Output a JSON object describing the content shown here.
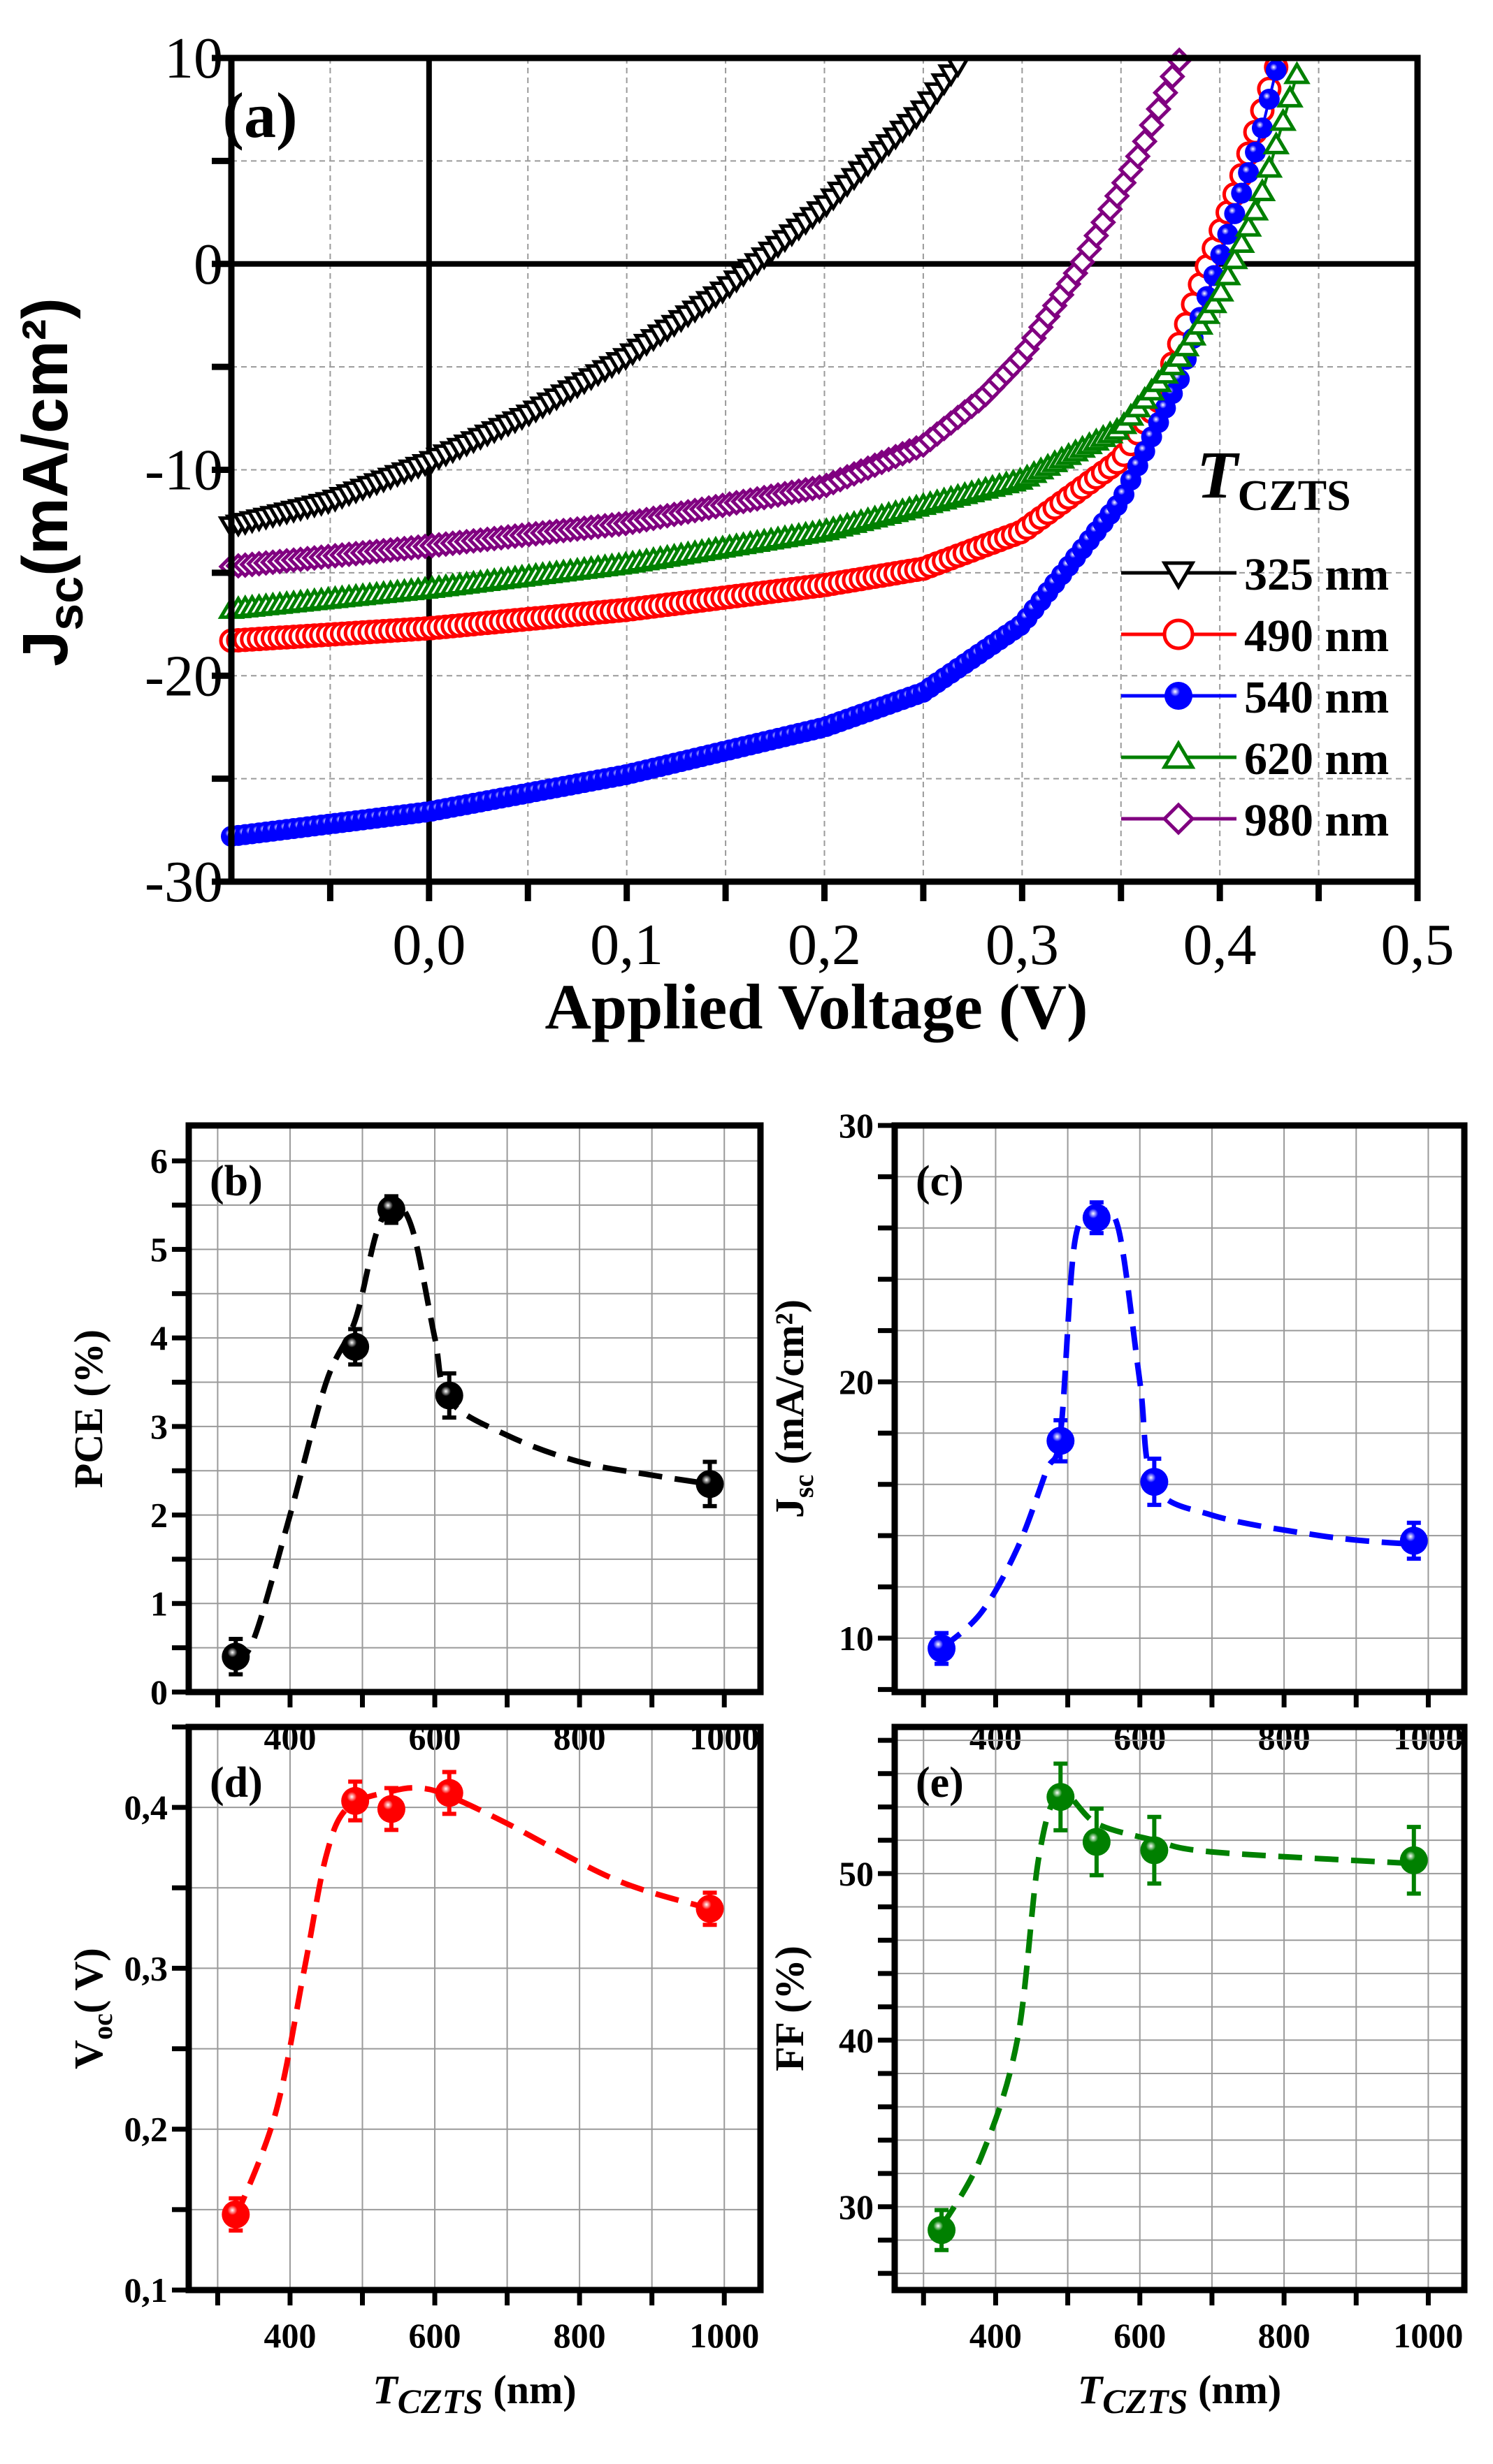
{
  "chart_data": [
    {
      "id": "a",
      "type": "line",
      "panel_label": "(a)",
      "xlabel": "Applied Voltage (V)",
      "ylabel": {
        "main": "J",
        "sub": "sc",
        "rest": "(mA/cm²)"
      },
      "xlim": [
        -0.1,
        0.5
      ],
      "ylim": [
        -30,
        10
      ],
      "xticks": [
        "0,0",
        "0,1",
        "0,2",
        "0,3",
        "0,4",
        "0,5"
      ],
      "xtick_values": [
        0,
        0.1,
        0.2,
        0.3,
        0.4,
        0.5
      ],
      "yticks": [
        "10",
        "0",
        "-10",
        "-20",
        "-30"
      ],
      "ytick_values": [
        10,
        0,
        -10,
        -20,
        -30
      ],
      "grid": true,
      "legend": {
        "title_main": "T",
        "title_sub": "CZTS",
        "placement": "right"
      },
      "series": [
        {
          "name": "325 nm",
          "color": "#000000",
          "marker": "triangle-down-open",
          "x": [
            -0.1,
            -0.05,
            0,
            0.05,
            0.1,
            0.15,
            0.2,
            0.25,
            0.27
          ],
          "y": [
            -12.7,
            -11.5,
            -9.6,
            -7.3,
            -4.5,
            -1.2,
            2.8,
            7.5,
            10
          ]
        },
        {
          "name": "490 nm",
          "color": "#ff0000",
          "marker": "circle-open",
          "x": [
            -0.1,
            0,
            0.1,
            0.2,
            0.25,
            0.3,
            0.35,
            0.37,
            0.39,
            0.41,
            0.43
          ],
          "y": [
            -18.3,
            -17.7,
            -16.8,
            -15.6,
            -14.8,
            -13,
            -9.5,
            -6.5,
            -1,
            4,
            10
          ]
        },
        {
          "name": "540 nm",
          "color": "#0000ff",
          "marker": "sphere",
          "x": [
            -0.1,
            0,
            0.1,
            0.2,
            0.25,
            0.3,
            0.35,
            0.38,
            0.4,
            0.42,
            0.43
          ],
          "y": [
            -27.8,
            -26.6,
            -24.8,
            -22.5,
            -20.8,
            -17.5,
            -11.5,
            -5.5,
            0.3,
            6,
            10
          ]
        },
        {
          "name": "620 nm",
          "color": "#008000",
          "marker": "triangle-up-open",
          "x": [
            -0.1,
            0,
            0.1,
            0.2,
            0.3,
            0.35,
            0.38,
            0.4,
            0.42,
            0.44
          ],
          "y": [
            -16.8,
            -15.8,
            -14.6,
            -13,
            -10.5,
            -8,
            -4.5,
            -1.5,
            3,
            9.5
          ]
        },
        {
          "name": "980 nm",
          "color": "#800080",
          "marker": "diamond-open",
          "x": [
            -0.1,
            0,
            0.1,
            0.2,
            0.25,
            0.28,
            0.3,
            0.33,
            0.36,
            0.38
          ],
          "y": [
            -14.7,
            -13.7,
            -12.6,
            -10.8,
            -8.8,
            -6.5,
            -4.5,
            0,
            5.5,
            10
          ]
        }
      ]
    },
    {
      "id": "b",
      "type": "scatter",
      "panel_label": "(b)",
      "color": "#000000",
      "ylabel": {
        "main": "PCE (%)",
        "sub": "",
        "rest": ""
      },
      "xlabel": {
        "main": "T",
        "sub": "CZTS",
        "rest": " (nm)"
      },
      "xlim": [
        260,
        1050
      ],
      "ylim": [
        0,
        6.4
      ],
      "xticks": [
        "400",
        "600",
        "800",
        "1000"
      ],
      "yticks": [
        "0",
        "1",
        "2",
        "3",
        "4",
        "5",
        "6"
      ],
      "x": [
        325,
        490,
        540,
        620,
        980
      ],
      "y": [
        0.4,
        3.9,
        5.45,
        3.35,
        2.35
      ],
      "err": [
        0.2,
        0.2,
        0.15,
        0.25,
        0.25
      ],
      "fit_x": [
        320,
        350,
        400,
        450,
        490,
        520,
        545,
        570,
        600,
        620,
        700,
        800,
        900,
        980
      ],
      "fit_y": [
        0.3,
        0.6,
        2.0,
        3.5,
        4.2,
        5.2,
        5.5,
        5.2,
        4.0,
        3.3,
        2.9,
        2.6,
        2.45,
        2.35
      ]
    },
    {
      "id": "c",
      "type": "scatter",
      "panel_label": "(c)",
      "color": "#0000ff",
      "ylabel": {
        "main": "J",
        "sub": "sc",
        "rest": " (mA/cm²)"
      },
      "xlabel": {
        "main": "T",
        "sub": "CZTS",
        "rest": " (nm)"
      },
      "xlim": [
        260,
        1050
      ],
      "ylim": [
        7.9,
        30
      ],
      "xticks": [
        "400",
        "600",
        "800",
        "1000"
      ],
      "yticks": [
        "10",
        "20",
        "30"
      ],
      "x": [
        325,
        490,
        540,
        620,
        980
      ],
      "y": [
        9.6,
        17.7,
        26.4,
        16.1,
        13.8
      ],
      "err": [
        0.6,
        0.8,
        0.6,
        0.9,
        0.7
      ],
      "fit_x": [
        325,
        380,
        430,
        470,
        490,
        510,
        540,
        570,
        600,
        620,
        700,
        850,
        960,
        980
      ],
      "fit_y": [
        9.6,
        11,
        13.5,
        16.5,
        18,
        25.5,
        26.5,
        26,
        20,
        16,
        14.8,
        14,
        13.7,
        13.8
      ]
    },
    {
      "id": "d",
      "type": "scatter",
      "panel_label": "(d)",
      "color": "#ff0000",
      "ylabel": {
        "main": "V",
        "sub": "oc",
        "rest": "( V)"
      },
      "xlabel": {
        "main": "T",
        "sub": "CZTS",
        "rest": " (nm)"
      },
      "xlim": [
        260,
        1050
      ],
      "ylim": [
        0.1,
        0.45
      ],
      "xticks": [
        "400",
        "600",
        "800",
        "1000"
      ],
      "yticks": [
        "0,1",
        "0,2",
        "0,3",
        "0,4"
      ],
      "x": [
        325,
        490,
        540,
        620,
        980
      ],
      "y": [
        0.147,
        0.404,
        0.399,
        0.409,
        0.337
      ],
      "err": [
        0.01,
        0.012,
        0.013,
        0.013,
        0.01
      ],
      "fit_x": [
        325,
        380,
        420,
        450,
        480,
        540,
        580,
        620,
        700,
        850,
        980
      ],
      "fit_y": [
        0.145,
        0.21,
        0.3,
        0.37,
        0.4,
        0.41,
        0.412,
        0.407,
        0.39,
        0.355,
        0.337
      ]
    },
    {
      "id": "e",
      "type": "scatter",
      "panel_label": "(e)",
      "color": "#008000",
      "ylabel": {
        "main": "FF (%)",
        "sub": "",
        "rest": ""
      },
      "xlabel": {
        "main": "T",
        "sub": "CZTS",
        "rest": " (nm)"
      },
      "xlim": [
        260,
        1050
      ],
      "ylim": [
        25,
        58.8
      ],
      "xticks": [
        "400",
        "600",
        "800",
        "1000"
      ],
      "yticks": [
        "30",
        "40",
        "50"
      ],
      "x": [
        325,
        490,
        540,
        620,
        980
      ],
      "y": [
        28.6,
        54.6,
        51.9,
        51.4,
        50.8
      ],
      "err": [
        1.2,
        2,
        2,
        2,
        2
      ],
      "fit_x": [
        325,
        380,
        430,
        460,
        490,
        540,
        620,
        700,
        980
      ],
      "fit_y": [
        28.8,
        33,
        40,
        51,
        54.8,
        53,
        52,
        51.3,
        50.6
      ]
    }
  ]
}
